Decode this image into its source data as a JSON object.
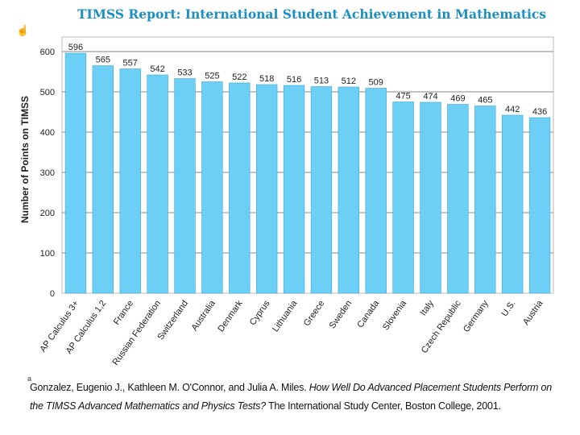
{
  "chart_data": {
    "type": "bar",
    "title": "TIMSS Report: International Student Achievement in Mathematics",
    "ylabel": "Number of Points on TIMSS",
    "xlabel": "",
    "ylim": [
      0,
      600
    ],
    "yticks": [
      0,
      100,
      200,
      300,
      400,
      500,
      600
    ],
    "ytick_labels": [
      "0",
      "100",
      "200",
      "300",
      "400",
      "500",
      "600"
    ],
    "categories": [
      "AP Calculus 3+",
      "AP Calculus 1,2",
      "France",
      "Russian Federation",
      "Switzerland",
      "Australia",
      "Denmark",
      "Cyprus",
      "Lithuania",
      "Greece",
      "Sweden",
      "Canada",
      "Slovenia",
      "Italy",
      "Czech Republic",
      "Germany",
      "U.S.",
      "Austria"
    ],
    "values": [
      596,
      565,
      557,
      542,
      533,
      525,
      522,
      518,
      516,
      513,
      512,
      509,
      475,
      474,
      469,
      465,
      442,
      436
    ],
    "value_labels": [
      "596",
      "565",
      "557",
      "542",
      "533",
      "525",
      "522",
      "518",
      "516",
      "513",
      "512",
      "509",
      "475",
      "474",
      "469",
      "465",
      "442",
      "436"
    ],
    "grid": true,
    "bar_color": "#6ccff5",
    "title_color": "#1c8fc1"
  },
  "citation": {
    "prefix": "Gonzalez, Eugenio J., Kathleen M. O'Connor, and Julia A. Miles. ",
    "italic_title": "How Well Do Advanced Placement Students Perform on the TIMSS Advanced Mathematics and Physics Tests?",
    "suffix": " The International Study Center, Boston College, 2001."
  },
  "cursor_glyph": "☝",
  "cite_marker": "a"
}
